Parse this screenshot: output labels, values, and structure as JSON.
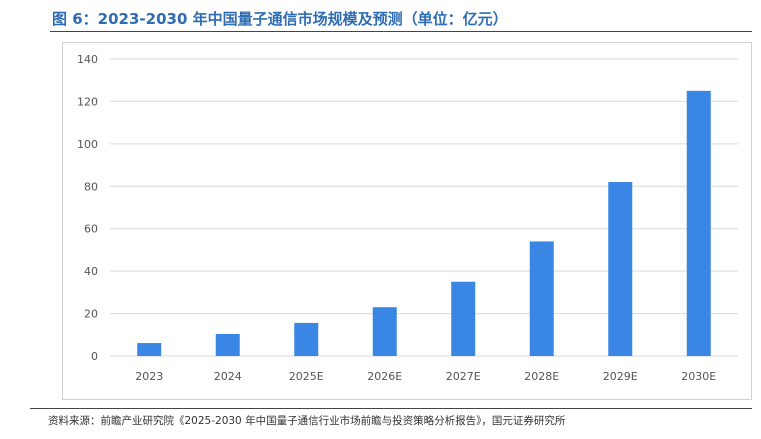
{
  "title": "图 6：2023-2030 年中国量子通信市场规模及预测（单位：亿元）",
  "source": "资料来源：前瞻产业研究院《2025-2030 年中国量子通信行业市场前瞻与投资策略分析报告》，国元证券研究所",
  "watermark": "前瞻产业研究院",
  "chart_data": {
    "type": "bar",
    "title": "2023-2030 年中国量子通信市场规模及预测（单位：亿元）",
    "categories": [
      "2023",
      "2024",
      "2025E",
      "2026E",
      "2027E",
      "2028E",
      "2029E",
      "2030E"
    ],
    "values": [
      6.1,
      10.4,
      15.6,
      23,
      35,
      54,
      82,
      125
    ],
    "yticks": [
      0,
      20,
      40,
      60,
      80,
      100,
      120,
      140
    ],
    "ylim": [
      0,
      140
    ],
    "xlabel": "",
    "ylabel": "",
    "grid": true,
    "color": "#3a86e4"
  }
}
